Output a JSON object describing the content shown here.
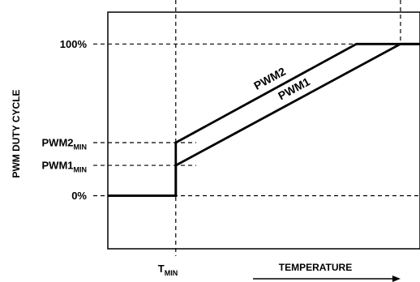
{
  "chart_data": {
    "type": "line",
    "ylabel": "PWM DUTY CYCLE",
    "xlabel": "TEMPERATURE",
    "x_tick": {
      "base": "T",
      "sub": "MIN"
    },
    "y_ticks": [
      {
        "key": "p100",
        "value": 100,
        "base": "100%",
        "sub": ""
      },
      {
        "key": "pwm2min",
        "value": 35,
        "base": "PWM2",
        "sub": "MIN"
      },
      {
        "key": "pwm1min",
        "value": 20,
        "base": "PWM1",
        "sub": "MIN"
      },
      {
        "key": "p0",
        "value": 0,
        "base": "0%",
        "sub": ""
      }
    ],
    "series": [
      {
        "name": "PWM2",
        "x": [
          0,
          0.94,
          0.94,
          3.44,
          4.32
        ],
        "y": [
          0,
          0,
          35,
          100,
          100
        ]
      },
      {
        "name": "PWM1",
        "x": [
          0,
          0.94,
          0.94,
          4.05,
          4.32
        ],
        "y": [
          0,
          0,
          20,
          100,
          100
        ]
      }
    ],
    "xlim": [
      0,
      4.32
    ],
    "ylim": [
      -35,
      121
    ]
  }
}
